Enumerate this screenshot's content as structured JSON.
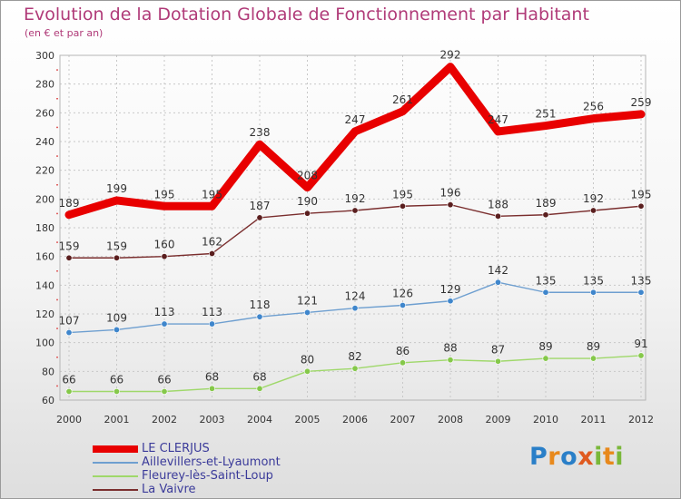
{
  "title": "Evolution de la Dotation Globale de Fonctionnement par Habitant",
  "subtitle": "(en € et par an)",
  "brand": {
    "text": "Proxiti",
    "letter_colors": [
      "#2a7fc8",
      "#e8891c",
      "#2a7fc8",
      "#e05a20",
      "#7ab83a",
      "#e8891c",
      "#7ab83a"
    ]
  },
  "chart_data": {
    "type": "line",
    "x": [
      "2000",
      "2001",
      "2002",
      "2003",
      "2004",
      "2005",
      "2006",
      "2007",
      "2008",
      "2009",
      "2010",
      "2011",
      "2012"
    ],
    "ylim": [
      60,
      300
    ],
    "yticks": [
      "60",
      "80",
      "100",
      "120",
      "140",
      "160",
      "180",
      "200",
      "220",
      "240",
      "260",
      "280",
      "300"
    ],
    "grid": true,
    "legend_placement": "bottom-left",
    "series": [
      {
        "name": "LE CLERJUS",
        "color": "#e80000",
        "emphasis": true,
        "values": [
          189,
          199,
          195,
          195,
          238,
          208,
          247,
          261,
          292,
          247,
          251,
          256,
          259
        ]
      },
      {
        "name": "Aillevillers-et-Lyaumont",
        "color": "#6e9fd0",
        "marker_color": "#3f86cc",
        "values": [
          107,
          109,
          113,
          113,
          118,
          121,
          124,
          126,
          129,
          142,
          135,
          135,
          135
        ]
      },
      {
        "name": "Fleurey-lès-Saint-Loup",
        "color": "#9fd86a",
        "marker_color": "#85c84a",
        "values": [
          66,
          66,
          66,
          68,
          68,
          80,
          82,
          86,
          88,
          87,
          89,
          89,
          91
        ]
      },
      {
        "name": "La Vaivre",
        "color": "#7a2e2e",
        "marker_color": "#5a1e1e",
        "values": [
          159,
          159,
          160,
          162,
          187,
          190,
          192,
          195,
          196,
          188,
          189,
          192,
          195
        ]
      }
    ]
  }
}
